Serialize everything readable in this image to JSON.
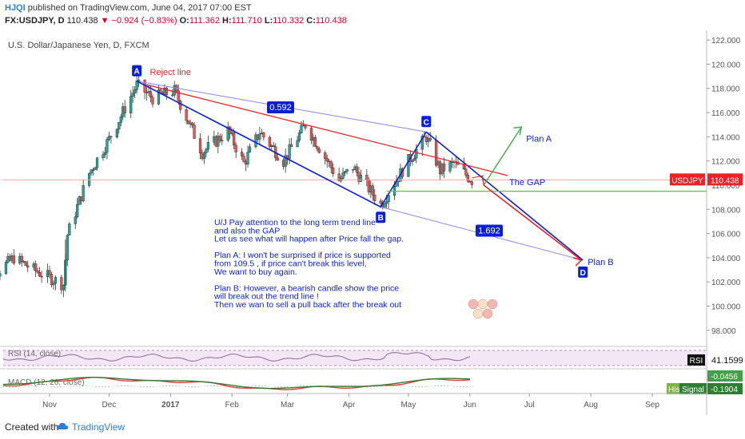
{
  "header": {
    "author": "HJQI",
    "published": "published on TradingView.com, June 04, 2017 07:00 EST",
    "symbol": "FX:USDJPY, D",
    "last": "110.438",
    "change": "▼ −0.924 (−0.83%)",
    "open_label": "O:",
    "open": "111.362",
    "high_label": "H:",
    "high": "111.710",
    "low_label": "L:",
    "low": "110.332",
    "close_label": "C:",
    "close": "110.438"
  },
  "chart_data": {
    "type": "candlestick",
    "title": "U.S. Dollar/Japanese Yen, D, FXCM",
    "ylim": [
      96.8,
      122.8
    ],
    "yticks": [
      "122.000",
      "120.000",
      "118.000",
      "116.000",
      "114.000",
      "112.000",
      "110.000",
      "108.000",
      "106.000",
      "104.000",
      "102.000",
      "100.000",
      "98.000"
    ],
    "xticks": [
      "Nov",
      "Dec",
      "2017",
      "Feb",
      "Mar",
      "Apr",
      "May",
      "Jun",
      "Jul",
      "Aug",
      "Sep"
    ],
    "current_price_label": "USDJPY",
    "current_price": "110.438",
    "anchors": [
      {
        "label": "A",
        "date": "2016-12-15",
        "price": 118.6
      },
      {
        "label": "B",
        "date": "2017-04-17",
        "price": 108.2
      },
      {
        "label": "C",
        "date": "2017-05-10",
        "price": 114.4
      },
      {
        "label": "D",
        "date": "2017-07-28",
        "price": 103.8
      }
    ],
    "ratios": [
      "0.592",
      "1.692"
    ],
    "annotations": {
      "reject_line": "Reject line",
      "plan_a": "Plan A",
      "plan_b": "Plan B",
      "the_gap": "The GAP",
      "note_lines": [
        "U/J Pay attention to the long term trend line",
        "and also the GAP",
        "Let us see what will happen after Price  fall the gap.",
        "",
        "Plan A: I won't be surprised if price  is supported",
        "from 109.5 , if price can't break this level,",
        "We want to buy again.",
        "",
        "Plan B: However, a bearish candle show the price",
        "will break out the trend line !",
        "Then we wan to sell a pull back after the break out"
      ]
    },
    "rsi": {
      "label": "RSI (14, close)",
      "tag": "RSI",
      "value": "41.1599"
    },
    "macd": {
      "label": "MACD (12, 26, close)",
      "value1": "-0.0456",
      "value2": "-0.1904",
      "hist_tag": "His",
      "signal_tag": "Signal"
    },
    "colors": {
      "up": "#26a69a",
      "down": "#ef5350",
      "wave": "#0a1fd6",
      "reject": "#e0262a",
      "planA": "#4caf50",
      "gap": "#6fbf4a",
      "price": "#ee2222"
    }
  },
  "footer": {
    "created": "Created with",
    "brand": "TradingView"
  }
}
